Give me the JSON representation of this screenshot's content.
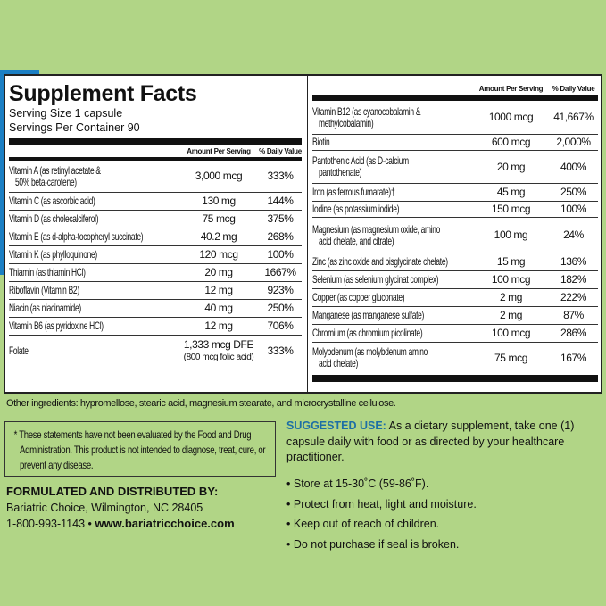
{
  "title": "Supplement Facts",
  "serving_size": "Serving Size 1 capsule",
  "servings_per_container": "Servings Per Container 90",
  "col_amount": "Amount Per Serving",
  "col_dv": "% Daily Value",
  "left_rows": [
    {
      "name": "Vitamin A (as retinyl acetate &",
      "name2": "50% beta-carotene)",
      "amount": "3,000 mcg",
      "dv": "333%"
    },
    {
      "name": "Vitamin C (as ascorbic acid)",
      "amount": "130 mg",
      "dv": "144%"
    },
    {
      "name": "Vitamin D (as cholecalciferol)",
      "amount": "75 mcg",
      "dv": "375%"
    },
    {
      "name": "Vitamin E (as d-alpha-tocopheryl succinate)",
      "amount": "40.2 mg",
      "dv": "268%"
    },
    {
      "name": "Vitamin K (as phylloquinone)",
      "amount": "120 mcg",
      "dv": "100%"
    },
    {
      "name": "Thiamin (as thiamin HCl)",
      "amount": "20 mg",
      "dv": "1667%"
    },
    {
      "name": "Riboflavin (Vitamin B2)",
      "amount": "12 mg",
      "dv": "923%"
    },
    {
      "name": "Niacin (as niacinamide)",
      "amount": "40 mg",
      "dv": "250%"
    },
    {
      "name": "Vitamin B6 (as pyridoxine HCl)",
      "amount": "12 mg",
      "dv": "706%"
    },
    {
      "name": "Folate",
      "amount": "1,333 mcg DFE",
      "amount2": "(800 mcg folic acid)",
      "dv": "333%"
    }
  ],
  "right_rows": [
    {
      "name": "Vitamin B12 (as cyanocobalamin &",
      "name2": "methylcobalamin)",
      "amount": "1000 mcg",
      "dv": "41,667%"
    },
    {
      "name": "Biotin",
      "amount": "600 mcg",
      "dv": "2,000%"
    },
    {
      "name": "Pantothenic Acid (as D-calcium",
      "name2": "pantothenate)",
      "amount": "20 mg",
      "dv": "400%"
    },
    {
      "name": "Iron (as ferrous fumarate)†",
      "amount": "45 mg",
      "dv": "250%"
    },
    {
      "name": "Iodine (as potassium iodide)",
      "amount": "150 mcg",
      "dv": "100%"
    },
    {
      "name": "Magnesium (as magnesium oxide, amino",
      "name2": "acid chelate, and citrate)",
      "amount": "100 mg",
      "dv": "24%"
    },
    {
      "name": "Zinc (as zinc oxide and bisglycinate chelate)",
      "amount": "15 mg",
      "dv": "136%"
    },
    {
      "name": "Selenium (as selenium glycinat complex)",
      "amount": "100 mcg",
      "dv": "182%"
    },
    {
      "name": "Copper (as copper gluconate)",
      "amount": "2 mg",
      "dv": "222%"
    },
    {
      "name": "Manganese (as manganese sulfate)",
      "amount": "2 mg",
      "dv": "87%"
    },
    {
      "name": "Chromium (as chromium picolinate)",
      "amount": "100 mcg",
      "dv": "286%"
    },
    {
      "name": "Molybdenum (as molybdenum amino",
      "name2": "acid chelate)",
      "amount": "75 mcg",
      "dv": "167%"
    }
  ],
  "other_ingredients": "Other ingredients: hypromellose, stearic acid, magnesium stearate, and microcrystalline cellulose.",
  "disclaimer": "* These statements have not been evaluated by the Food and Drug Administration. This product is not intended to diagnose, treat, cure, or prevent any disease.",
  "formulated_heading": "FORMULATED AND DISTRIBUTED BY:",
  "company": "Bariatric Choice, Wilmington, NC 28405",
  "phone": "1-800-993-1143",
  "website": "www.bariatricchoice.com",
  "suggested_use_label": "SUGGESTED USE:",
  "suggested_use_text": " As a dietary supplement, take one (1) capsule daily with food or as directed by your healthcare practitioner.",
  "bullets": [
    "Store at 15-30˚C (59-86˚F).",
    "Protect from heat, light and moisture.",
    "Keep out of reach of children.",
    "Do not purchase if seal is broken."
  ],
  "colors": {
    "background": "#b1d586",
    "accent_blue": "#1d6fa5",
    "panel": "#ffffff"
  }
}
